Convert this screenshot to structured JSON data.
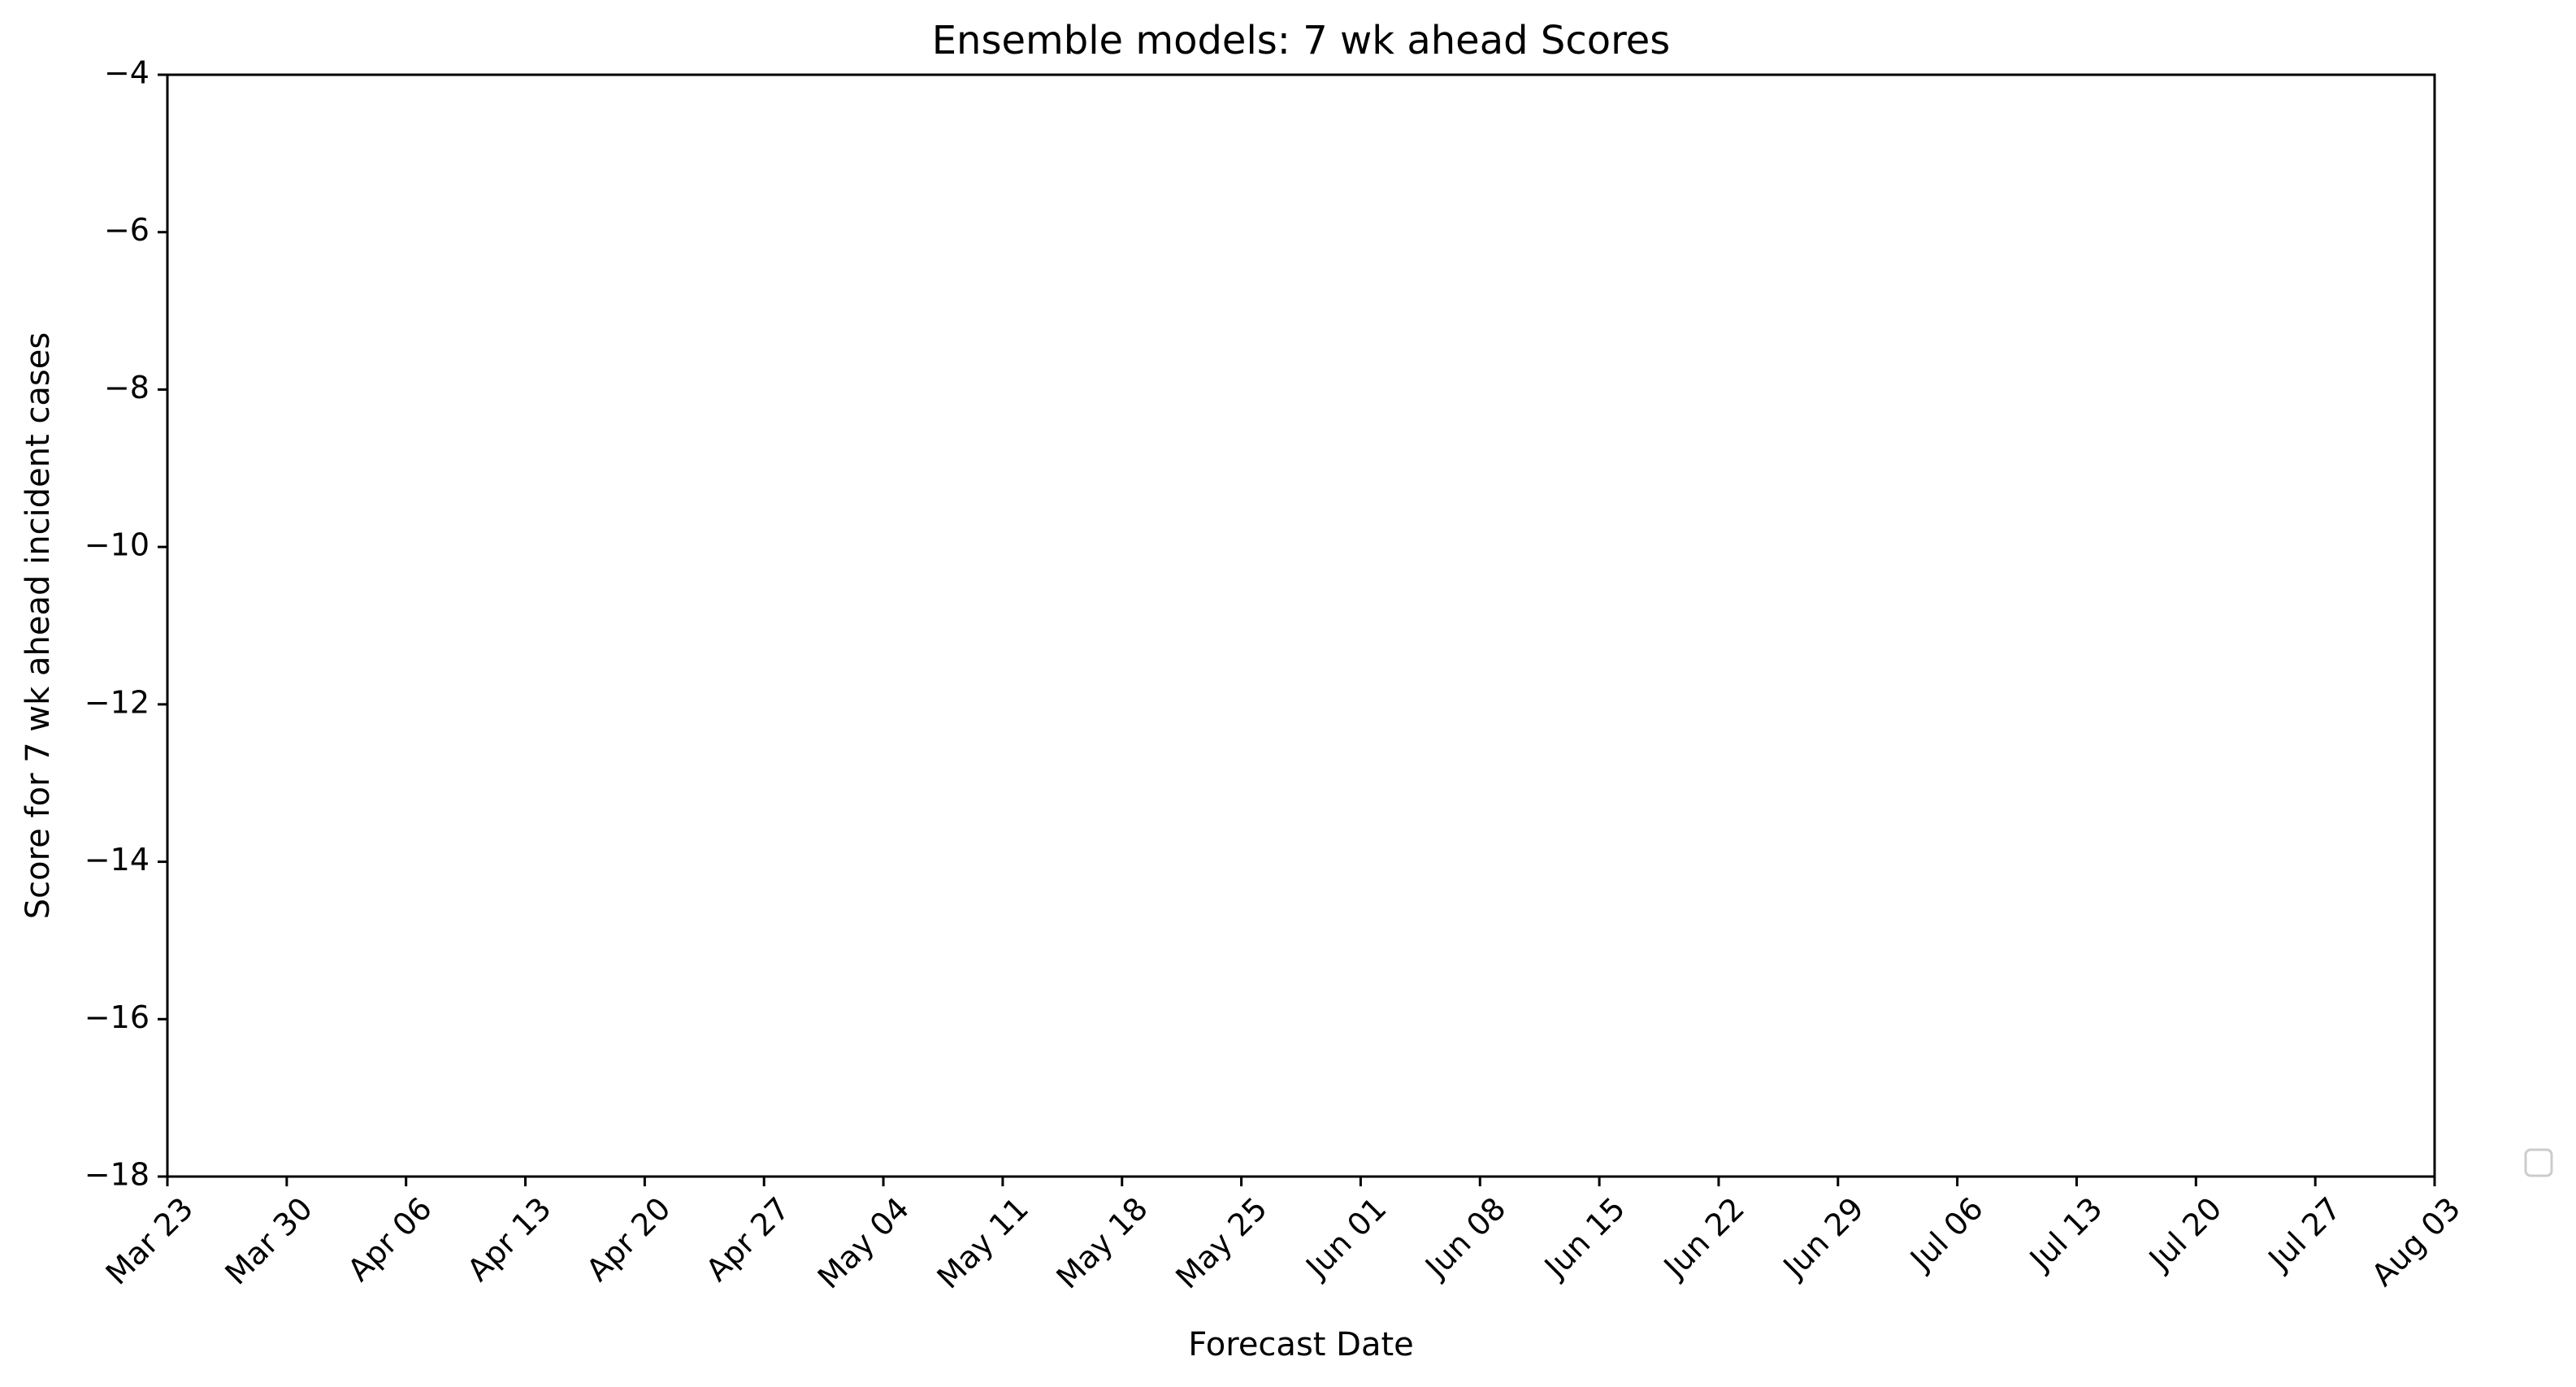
{
  "chart_data": {
    "type": "line",
    "title": "Ensemble models: 7 wk ahead Scores",
    "xlabel": "Forecast Date",
    "ylabel": "Score for 7 wk ahead incident cases",
    "x_ticks": [
      "Mar 23",
      "Mar 30",
      "Apr 06",
      "Apr 13",
      "Apr 20",
      "Apr 27",
      "May 04",
      "May 11",
      "May 18",
      "May 25",
      "Jun 01",
      "Jun 08",
      "Jun 15",
      "Jun 22",
      "Jun 29",
      "Jul 06",
      "Jul 13",
      "Jul 20",
      "Jul 27",
      "Aug 03"
    ],
    "y_ticks": [
      -4,
      -6,
      -8,
      -10,
      -12,
      -14,
      -16,
      -18
    ],
    "y_tick_labels": [
      "−4",
      "−6",
      "−8",
      "−10",
      "−12",
      "−14",
      "−16",
      "−18"
    ],
    "ylim": [
      -18,
      -4
    ],
    "series": [],
    "grid": false,
    "legend": {
      "placement": "right",
      "entries": []
    }
  }
}
